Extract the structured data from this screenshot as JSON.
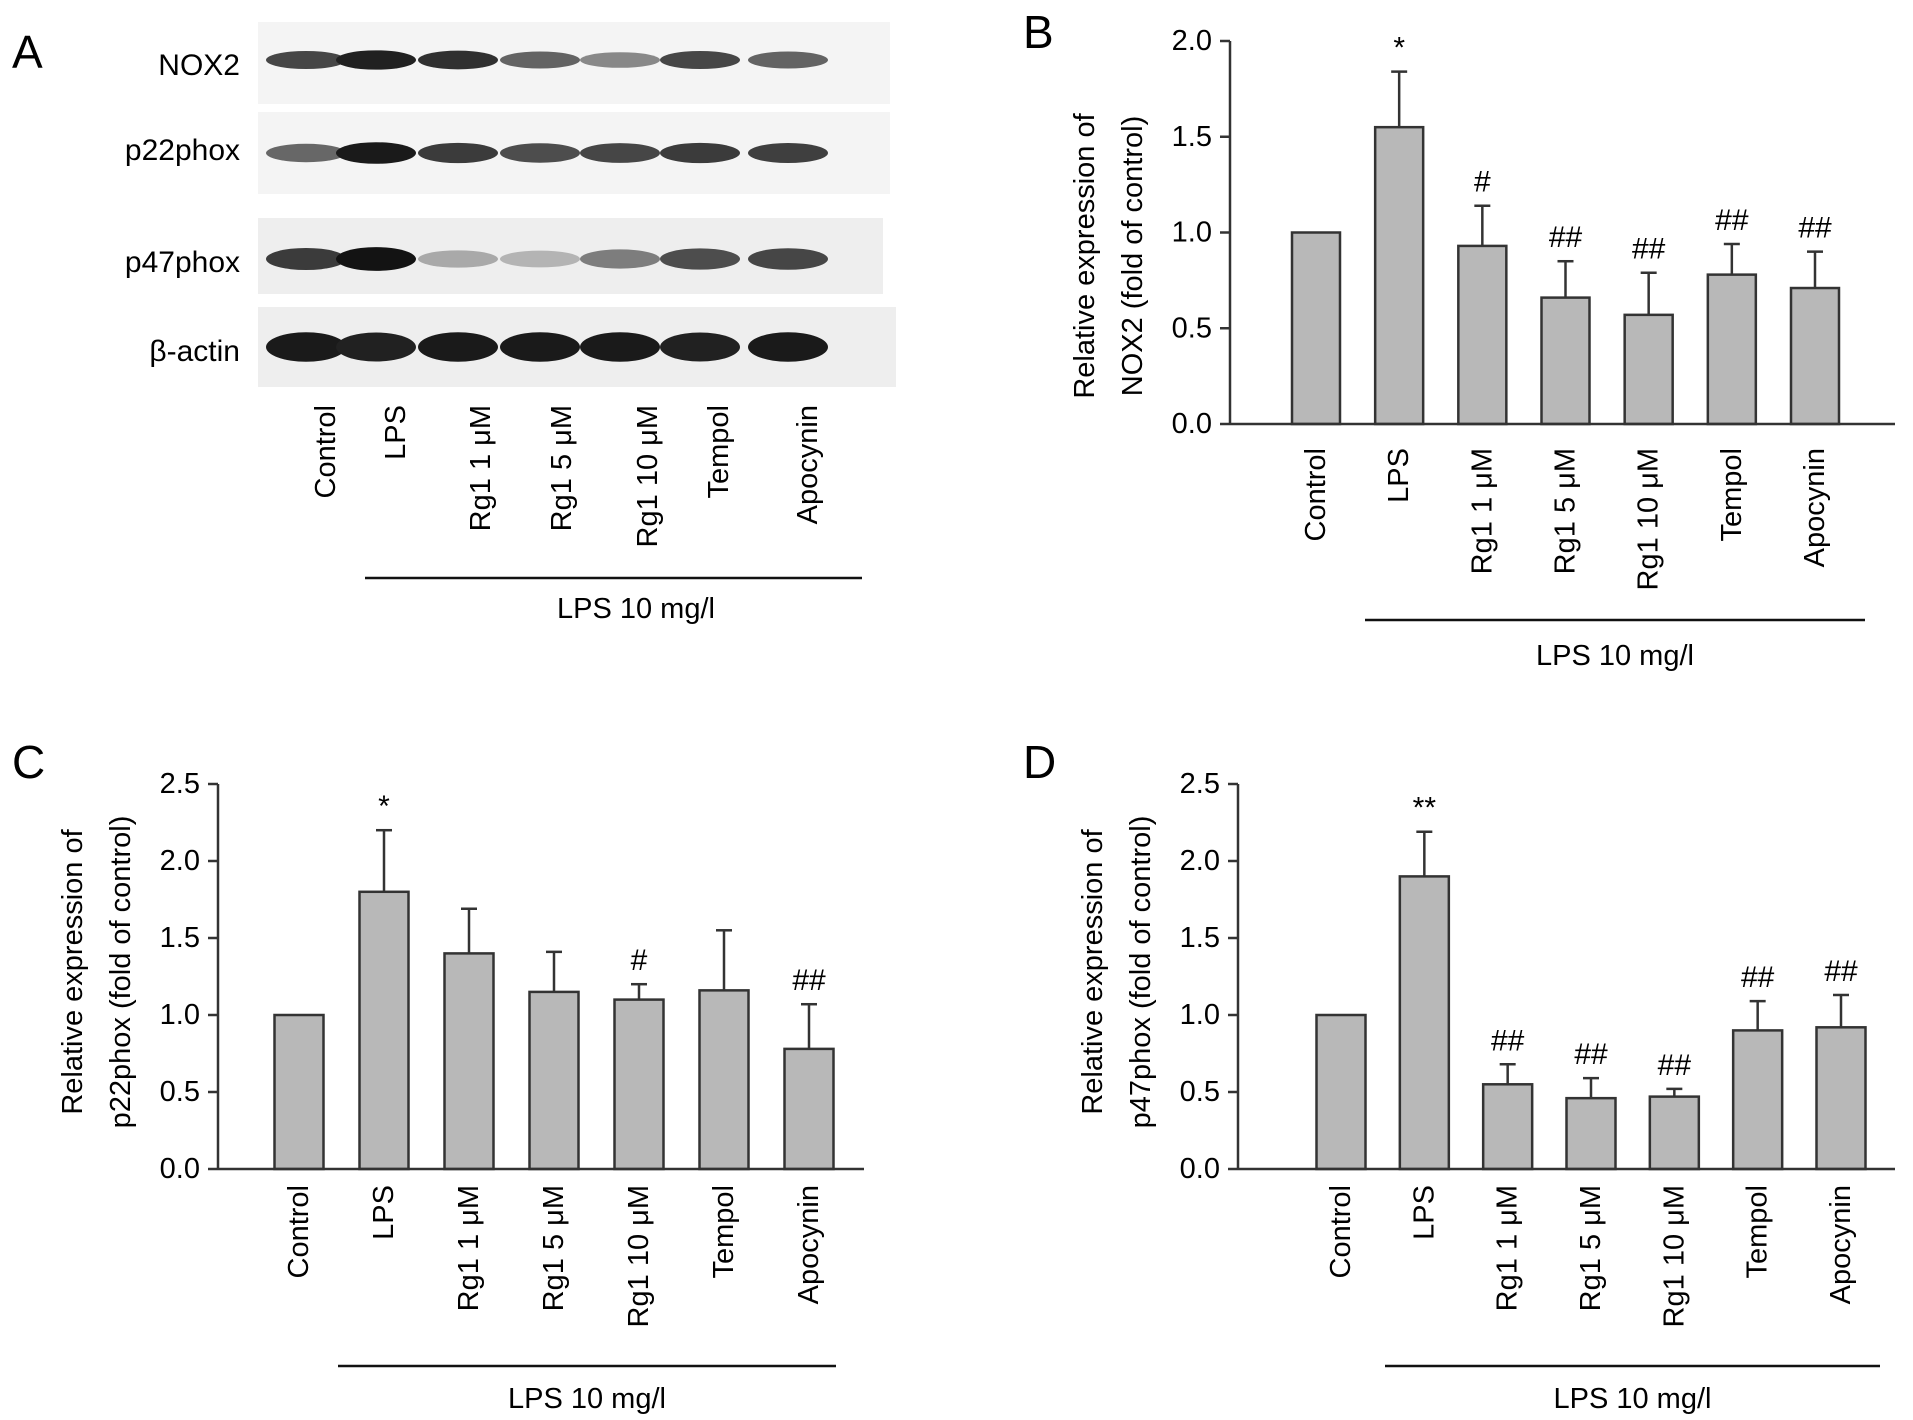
{
  "figure": {
    "blot": {
      "letter": "A",
      "proteins": [
        "NOX2",
        "p22phox",
        "p47phox",
        "β-actin"
      ],
      "lanes": [
        "Control",
        "LPS",
        "Rg1 1 μM",
        "Rg1 5 μM",
        "Rg1 10 μM",
        "Tempol",
        "Apocynin"
      ],
      "group_label": "LPS 10 mg/l",
      "band_intensity": [
        [
          0.75,
          0.92,
          0.85,
          0.62,
          0.45,
          0.75,
          0.62
        ],
        [
          0.6,
          0.95,
          0.8,
          0.72,
          0.75,
          0.8,
          0.78
        ],
        [
          0.8,
          0.98,
          0.3,
          0.25,
          0.5,
          0.72,
          0.75
        ],
        [
          0.95,
          0.92,
          0.95,
          0.95,
          0.95,
          0.92,
          0.95
        ]
      ]
    }
  },
  "chart_data": [
    {
      "panel": "B",
      "type": "bar",
      "ylabel": [
        "Relative expression of",
        "NOX2 (fold of control)"
      ],
      "categories": [
        "Control",
        "LPS",
        "Rg1 1 μM",
        "Rg1 5 μM",
        "Rg1 10 μM",
        "Tempol",
        "Apocynin"
      ],
      "values": [
        1.0,
        1.55,
        0.93,
        0.66,
        0.57,
        0.78,
        0.71
      ],
      "errors": [
        0.0,
        0.29,
        0.21,
        0.19,
        0.22,
        0.16,
        0.19
      ],
      "significance": [
        "",
        "*",
        "#",
        "##",
        "##",
        "##",
        "##"
      ],
      "ylim": [
        0,
        2.0
      ],
      "yticks": [
        "0.0",
        "0.5",
        "1.0",
        "1.5",
        "2.0"
      ],
      "group_label": "LPS 10 mg/l",
      "bar_color": "#b8b8b8"
    },
    {
      "panel": "C",
      "type": "bar",
      "ylabel": [
        "Relative expression of",
        "p22phox (fold of control)"
      ],
      "categories": [
        "Control",
        "LPS",
        "Rg1 1 μM",
        "Rg1 5 μM",
        "Rg1 10 μM",
        "Tempol",
        "Apocynin"
      ],
      "values": [
        1.0,
        1.8,
        1.4,
        1.15,
        1.1,
        1.16,
        0.78
      ],
      "errors": [
        0.0,
        0.4,
        0.29,
        0.26,
        0.1,
        0.39,
        0.29
      ],
      "significance": [
        "",
        "*",
        "",
        "",
        "#",
        "",
        "##"
      ],
      "ylim": [
        0,
        2.5
      ],
      "yticks": [
        "0.0",
        "0.5",
        "1.0",
        "1.5",
        "2.0",
        "2.5"
      ],
      "group_label": "LPS 10 mg/l",
      "bar_color": "#b8b8b8"
    },
    {
      "panel": "D",
      "type": "bar",
      "ylabel": [
        "Relative expression of",
        "p47phox (fold of control)"
      ],
      "categories": [
        "Control",
        "LPS",
        "Rg1 1 μM",
        "Rg1 5 μM",
        "Rg1 10 μM",
        "Tempol",
        "Apocynin"
      ],
      "values": [
        1.0,
        1.9,
        0.55,
        0.46,
        0.47,
        0.9,
        0.92
      ],
      "errors": [
        0.0,
        0.29,
        0.13,
        0.13,
        0.05,
        0.19,
        0.21
      ],
      "significance": [
        "",
        "**",
        "##",
        "##",
        "##",
        "##",
        "##"
      ],
      "ylim": [
        0,
        2.5
      ],
      "yticks": [
        "0.0",
        "0.5",
        "1.0",
        "1.5",
        "2.0",
        "2.5"
      ],
      "group_label": "LPS 10 mg/l",
      "bar_color": "#b8b8b8"
    }
  ]
}
